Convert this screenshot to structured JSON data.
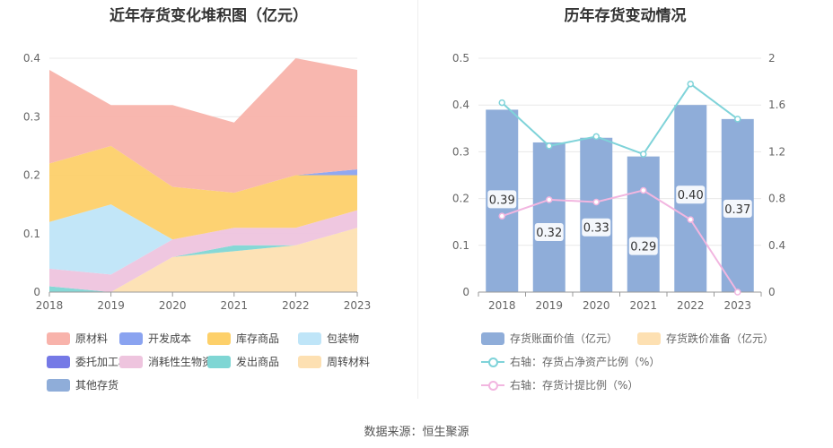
{
  "left_chart": {
    "title": "近年存货变化堆积图（亿元）"
  },
  "right_chart": {
    "title": "历年存货变动情况"
  },
  "source": "数据来源：恒生聚源",
  "colors": {
    "原材料": "#f8b3ab",
    "开发成本": "#8aa3f0",
    "库存商品": "#fdd06a",
    "包装物": "#bfe5f8",
    "委托加工材料": "#7579e6",
    "消耗性生物资产": "#eec4de",
    "发出商品": "#7fd6d4",
    "周转材料": "#fde0b2",
    "其他存货": "#8fadd9",
    "bar": "#8fadd9",
    "line_net": "#7fd3d9",
    "line_ratio": "#f2b6e0"
  },
  "chart_data": [
    {
      "type": "area",
      "stacked": true,
      "title": "近年存货变化堆积图（亿元）",
      "x": [
        "2018",
        "2019",
        "2020",
        "2021",
        "2022",
        "2023"
      ],
      "ylim": [
        0,
        0.4
      ],
      "yticks": [
        "0",
        "0.1",
        "0.2",
        "0.3",
        "0.4"
      ],
      "grid": true,
      "legend_position": "bottom",
      "legend": [
        "原材料",
        "开发成本",
        "库存商品",
        "包装物",
        "委托加工材料",
        "消耗性生物资产",
        "发出商品",
        "周转材料",
        "其他存货"
      ],
      "series": [
        {
          "name": "周转材料",
          "values": [
            0.0,
            0.0,
            0.06,
            0.07,
            0.08,
            0.11
          ]
        },
        {
          "name": "发出商品",
          "values": [
            0.01,
            0.0,
            0.0,
            0.01,
            0.0,
            0.0
          ]
        },
        {
          "name": "消耗性生物资产",
          "values": [
            0.03,
            0.03,
            0.03,
            0.03,
            0.03,
            0.03
          ]
        },
        {
          "name": "包装物",
          "values": [
            0.08,
            0.12,
            0.0,
            0.0,
            0.0,
            0.0
          ]
        },
        {
          "name": "库存商品",
          "values": [
            0.1,
            0.1,
            0.09,
            0.06,
            0.09,
            0.06
          ]
        },
        {
          "name": "开发成本",
          "values": [
            0.0,
            0.0,
            0.0,
            0.0,
            0.0,
            0.01
          ]
        },
        {
          "name": "原材料",
          "values": [
            0.16,
            0.07,
            0.14,
            0.12,
            0.2,
            0.17
          ]
        }
      ]
    },
    {
      "type": "bar",
      "title": "历年存货变动情况",
      "categories": [
        "2018",
        "2019",
        "2020",
        "2021",
        "2022",
        "2023"
      ],
      "ylim_left": [
        0,
        0.5
      ],
      "yticks_left": [
        "0",
        "0.1",
        "0.2",
        "0.3",
        "0.4",
        "0.5"
      ],
      "ylim_right": [
        0,
        2
      ],
      "yticks_right": [
        "0",
        "0.4",
        "0.8",
        "1.2",
        "1.6",
        "2"
      ],
      "legend_position": "bottom",
      "series": [
        {
          "name": "存货账面价值（亿元）",
          "axis": "left",
          "type": "bar",
          "values": [
            0.39,
            0.32,
            0.33,
            0.29,
            0.4,
            0.37
          ],
          "labels": [
            "0.39",
            "0.32",
            "0.33",
            "0.29",
            "0.40",
            "0.37"
          ]
        },
        {
          "name": "存货跌价准备（亿元）",
          "axis": "left",
          "type": "bar",
          "values": [
            0,
            0,
            0,
            0,
            0,
            0
          ]
        },
        {
          "name": "右轴：存货占净资产比例（%）",
          "axis": "right",
          "type": "line",
          "values": [
            1.62,
            1.25,
            1.33,
            1.18,
            1.78,
            1.48
          ]
        },
        {
          "name": "右轴：存货计提比例（%）",
          "axis": "right",
          "type": "line",
          "values": [
            0.65,
            0.79,
            0.77,
            0.87,
            0.62,
            0.0
          ]
        }
      ]
    }
  ]
}
